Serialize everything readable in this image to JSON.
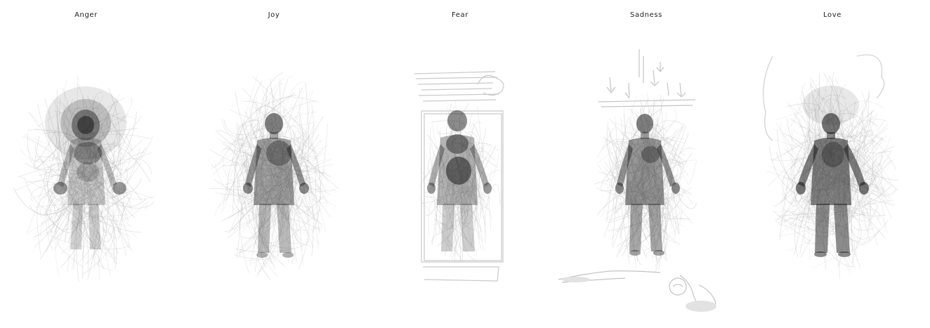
{
  "figures": [
    {
      "label": "Anger",
      "icon": "anger-body-silhouette-icon"
    },
    {
      "label": "Joy",
      "icon": "joy-body-silhouette-icon"
    },
    {
      "label": "Fear",
      "icon": "fear-body-silhouette-icon"
    },
    {
      "label": "Sadness",
      "icon": "sadness-body-silhouette-icon"
    },
    {
      "label": "Love",
      "icon": "love-body-silhouette-icon"
    }
  ],
  "colors": {
    "background": "#ffffff",
    "ink": "#1a1a1a",
    "scribble": "#bdbdbd",
    "label": "#222222"
  }
}
